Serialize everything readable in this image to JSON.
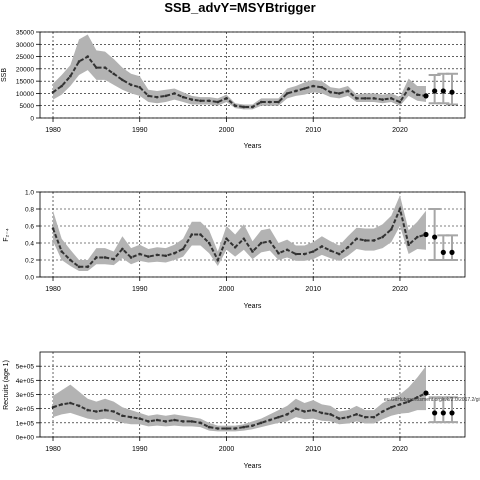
{
  "title": "SSB_advY=MSYBtrigger",
  "watermark": "eu.GitHubassessment.org/wk/2.0/2017.2/gittag/c...",
  "colors": {
    "band": "#b3b3b3",
    "line": "#333333",
    "point": "#000000",
    "grid": "#000000",
    "error": "#a6a6a6"
  },
  "chart_data": [
    {
      "type": "line",
      "xlabel": "Years",
      "ylabel": "SSB",
      "xlim": [
        1978.5,
        2027.5
      ],
      "ylim": [
        0,
        35000
      ],
      "xticks": [
        1980,
        1990,
        2000,
        2010,
        2020
      ],
      "yticks": [
        0,
        5000,
        10000,
        15000,
        20000,
        25000,
        30000,
        35000
      ],
      "ytick_labels": [
        "0",
        "5000",
        "10000",
        "15000",
        "20000",
        "25000",
        "30000",
        "35000"
      ],
      "grid": true,
      "x": [
        1980,
        1981,
        1982,
        1983,
        1984,
        1985,
        1986,
        1987,
        1988,
        1989,
        1990,
        1991,
        1992,
        1993,
        1994,
        1995,
        1996,
        1997,
        1998,
        1999,
        2000,
        2001,
        2002,
        2003,
        2004,
        2005,
        2006,
        2007,
        2008,
        2009,
        2010,
        2011,
        2012,
        2013,
        2014,
        2015,
        2016,
        2017,
        2018,
        2019,
        2020,
        2021,
        2022,
        2023
      ],
      "y": [
        10500,
        13000,
        17000,
        23000,
        25000,
        20500,
        20500,
        18000,
        15500,
        13500,
        12500,
        9000,
        8500,
        9000,
        10000,
        8500,
        7500,
        7000,
        7000,
        6500,
        8000,
        5000,
        4500,
        4500,
        6500,
        6500,
        6500,
        10000,
        11000,
        12000,
        13000,
        12500,
        10500,
        10000,
        11000,
        8000,
        8000,
        8000,
        7500,
        8000,
        6500,
        12000,
        9500,
        9000
      ],
      "upper": [
        14000,
        17500,
        21500,
        32000,
        34000,
        27500,
        27000,
        24000,
        20500,
        18000,
        17000,
        11500,
        11000,
        11500,
        12000,
        10500,
        9000,
        8500,
        8500,
        8000,
        9500,
        6000,
        5500,
        5500,
        8000,
        8000,
        8000,
        12000,
        13000,
        14500,
        15500,
        15000,
        12500,
        12000,
        13000,
        9500,
        10000,
        10000,
        9500,
        10000,
        8500,
        16000,
        13000,
        13000
      ],
      "lower": [
        7500,
        9500,
        13000,
        17500,
        19500,
        15500,
        15500,
        13500,
        11500,
        10000,
        9000,
        6500,
        6000,
        6500,
        7500,
        6500,
        5500,
        5500,
        5500,
        5000,
        6500,
        4000,
        3500,
        3500,
        5000,
        5000,
        5000,
        8000,
        9000,
        9500,
        10500,
        10000,
        8500,
        8000,
        9000,
        6500,
        6500,
        6500,
        6000,
        6500,
        5000,
        9000,
        7000,
        6500
      ],
      "forecast": {
        "x": [
          2024,
          2025,
          2026
        ],
        "y": [
          11000,
          11000,
          10500
        ],
        "upper": [
          17500,
          18000,
          18000
        ],
        "lower": [
          6000,
          6000,
          5500
        ]
      }
    },
    {
      "type": "line",
      "xlabel": "Years",
      "ylabel": "F₂₋₄",
      "xlim": [
        1978.5,
        2027.5
      ],
      "ylim": [
        0,
        1.0
      ],
      "xticks": [
        1980,
        1990,
        2000,
        2010,
        2020
      ],
      "yticks": [
        0,
        0.2,
        0.4,
        0.6,
        0.8,
        1.0
      ],
      "ytick_labels": [
        "0.0",
        "0.2",
        "0.4",
        "0.6",
        "0.8",
        "1.0"
      ],
      "grid": true,
      "x": [
        1980,
        1981,
        1982,
        1983,
        1984,
        1985,
        1986,
        1987,
        1988,
        1989,
        1990,
        1991,
        1992,
        1993,
        1994,
        1995,
        1996,
        1997,
        1998,
        1999,
        2000,
        2001,
        2002,
        2003,
        2004,
        2005,
        2006,
        2007,
        2008,
        2009,
        2010,
        2011,
        2012,
        2013,
        2014,
        2015,
        2016,
        2017,
        2018,
        2019,
        2020,
        2021,
        2022,
        2023
      ],
      "y": [
        0.57,
        0.3,
        0.2,
        0.12,
        0.12,
        0.23,
        0.23,
        0.21,
        0.33,
        0.23,
        0.27,
        0.24,
        0.26,
        0.25,
        0.28,
        0.33,
        0.5,
        0.5,
        0.4,
        0.2,
        0.45,
        0.35,
        0.45,
        0.3,
        0.4,
        0.42,
        0.28,
        0.32,
        0.27,
        0.27,
        0.3,
        0.36,
        0.31,
        0.27,
        0.35,
        0.45,
        0.43,
        0.43,
        0.47,
        0.56,
        0.8,
        0.38,
        0.47,
        0.5
      ],
      "upper": [
        0.78,
        0.45,
        0.32,
        0.2,
        0.2,
        0.34,
        0.34,
        0.3,
        0.48,
        0.34,
        0.38,
        0.33,
        0.35,
        0.34,
        0.38,
        0.45,
        0.65,
        0.65,
        0.55,
        0.3,
        0.6,
        0.5,
        0.62,
        0.42,
        0.55,
        0.57,
        0.4,
        0.44,
        0.37,
        0.37,
        0.41,
        0.48,
        0.42,
        0.37,
        0.48,
        0.58,
        0.57,
        0.57,
        0.62,
        0.72,
        0.96,
        0.55,
        0.65,
        0.78
      ],
      "lower": [
        0.42,
        0.2,
        0.13,
        0.07,
        0.07,
        0.15,
        0.15,
        0.14,
        0.22,
        0.15,
        0.19,
        0.17,
        0.18,
        0.17,
        0.2,
        0.24,
        0.37,
        0.37,
        0.28,
        0.13,
        0.32,
        0.24,
        0.32,
        0.21,
        0.29,
        0.31,
        0.2,
        0.23,
        0.19,
        0.19,
        0.21,
        0.26,
        0.22,
        0.19,
        0.25,
        0.33,
        0.31,
        0.31,
        0.34,
        0.41,
        0.6,
        0.27,
        0.33,
        0.32
      ],
      "forecast": {
        "x": [
          2024,
          2025,
          2026
        ],
        "y": [
          0.47,
          0.29,
          0.29
        ],
        "upper": [
          0.8,
          0.49,
          0.49
        ],
        "lower": [
          0.2,
          0.2,
          0.2
        ]
      }
    },
    {
      "type": "line",
      "xlabel": "Years",
      "ylabel": "Recruits (age 1)",
      "xlim": [
        1978.5,
        2027.5
      ],
      "ylim": [
        0,
        600000
      ],
      "xticks": [
        1980,
        1990,
        2000,
        2010,
        2020
      ],
      "yticks": [
        0,
        100000,
        200000,
        300000,
        400000,
        500000
      ],
      "ytick_labels": [
        "0e+00",
        "1e+05",
        "2e+05",
        "3e+05",
        "4e+05",
        "5e+05"
      ],
      "grid": true,
      "x": [
        1980,
        1981,
        1982,
        1983,
        1984,
        1985,
        1986,
        1987,
        1988,
        1989,
        1990,
        1991,
        1992,
        1993,
        1994,
        1995,
        1996,
        1997,
        1998,
        1999,
        2000,
        2001,
        2002,
        2003,
        2004,
        2005,
        2006,
        2007,
        2008,
        2009,
        2010,
        2011,
        2012,
        2013,
        2014,
        2015,
        2016,
        2017,
        2018,
        2019,
        2020,
        2021,
        2022,
        2023
      ],
      "y": [
        210000,
        230000,
        240000,
        220000,
        190000,
        180000,
        190000,
        180000,
        150000,
        140000,
        130000,
        110000,
        120000,
        110000,
        120000,
        110000,
        110000,
        100000,
        70000,
        60000,
        60000,
        60000,
        70000,
        80000,
        100000,
        120000,
        140000,
        160000,
        200000,
        180000,
        190000,
        170000,
        160000,
        130000,
        140000,
        160000,
        140000,
        140000,
        180000,
        210000,
        230000,
        250000,
        280000,
        310000
      ],
      "upper": [
        290000,
        330000,
        370000,
        320000,
        270000,
        250000,
        270000,
        250000,
        210000,
        190000,
        170000,
        150000,
        160000,
        150000,
        160000,
        150000,
        140000,
        130000,
        100000,
        80000,
        80000,
        80000,
        90000,
        110000,
        130000,
        160000,
        190000,
        220000,
        270000,
        240000,
        260000,
        230000,
        220000,
        180000,
        190000,
        220000,
        190000,
        190000,
        240000,
        270000,
        300000,
        350000,
        420000,
        500000
      ],
      "lower": [
        140000,
        160000,
        170000,
        150000,
        130000,
        120000,
        130000,
        120000,
        100000,
        90000,
        90000,
        75000,
        80000,
        75000,
        80000,
        75000,
        75000,
        70000,
        45000,
        40000,
        40000,
        40000,
        45000,
        55000,
        70000,
        85000,
        100000,
        110000,
        140000,
        125000,
        130000,
        115000,
        110000,
        90000,
        95000,
        110000,
        95000,
        95000,
        125000,
        150000,
        165000,
        170000,
        190000,
        190000
      ],
      "forecast": {
        "x": [
          2024,
          2025,
          2026
        ],
        "y": [
          170000,
          170000,
          170000
        ],
        "upper": [
          280000,
          280000,
          280000
        ],
        "lower": [
          105000,
          105000,
          105000
        ]
      }
    }
  ]
}
